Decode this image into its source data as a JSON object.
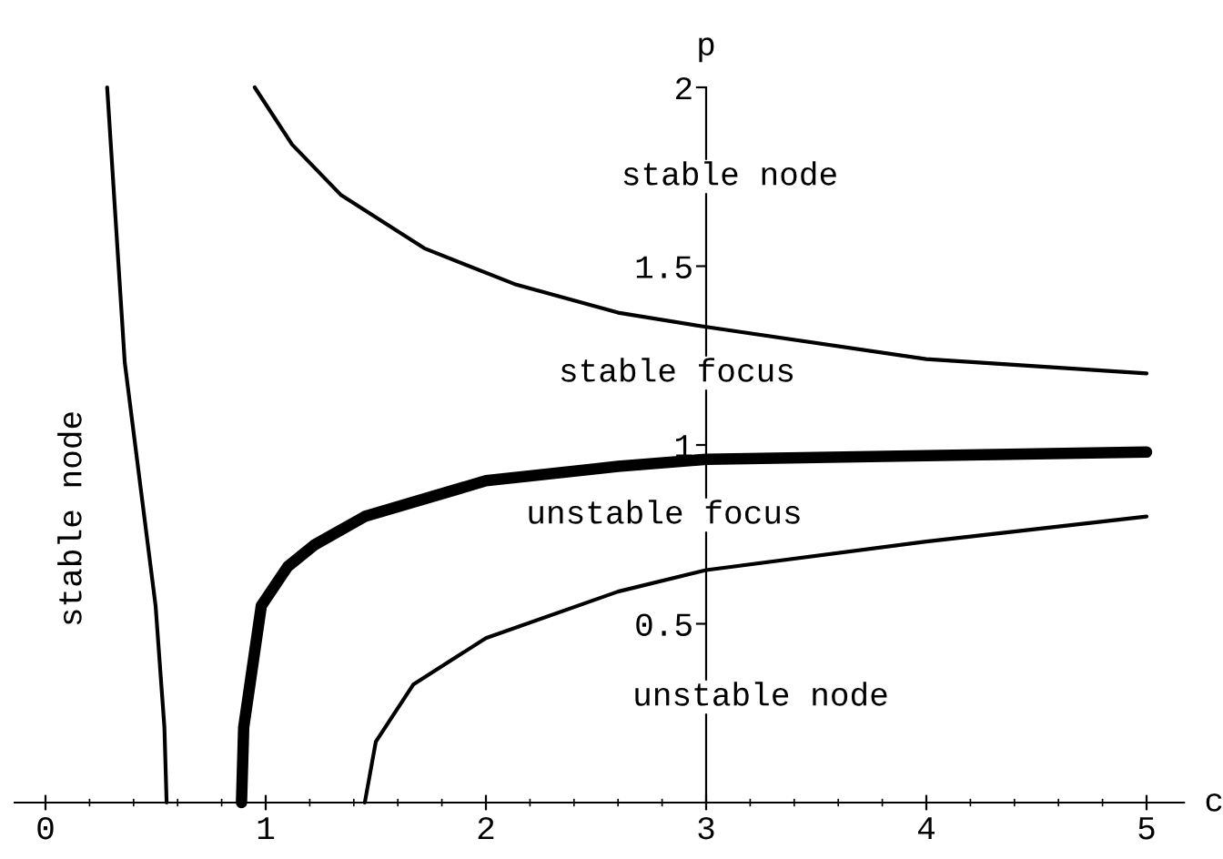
{
  "chart_data": {
    "type": "line",
    "xlabel": "c",
    "ylabel": "p",
    "xlim": [
      -0.14,
      5.17
    ],
    "ylim": [
      0,
      2
    ],
    "xticks": [
      0,
      1,
      2,
      3,
      4,
      5
    ],
    "yticks": [
      0.5,
      1,
      1.5,
      2
    ],
    "grid": false,
    "series": [
      {
        "color": "#000000",
        "x": [
          0.28,
          0.36,
          0.5,
          0.54,
          0.55
        ],
        "values": [
          2.0,
          1.23,
          0.55,
          0.21,
          0
        ]
      },
      {
        "color": "#000000",
        "x": [
          0.89,
          0.9,
          0.98,
          1.1,
          1.22,
          1.45,
          2.0,
          2.6,
          3.0,
          4.0,
          5.0
        ],
        "values": [
          0,
          0.21,
          0.55,
          0.66,
          0.72,
          0.8,
          0.9,
          0.94,
          0.96,
          0.97,
          0.98
        ]
      },
      {
        "color": "#000000",
        "x": [
          0.95,
          1.12,
          1.34,
          1.72,
          2.13,
          2.6,
          3.0,
          4.0,
          5.0
        ],
        "values": [
          2.0,
          1.84,
          1.7,
          1.55,
          1.45,
          1.37,
          1.33,
          1.24,
          1.2
        ]
      },
      {
        "color": "#000000",
        "x": [
          1.45,
          1.5,
          1.67,
          2.0,
          2.6,
          3.0,
          4.0,
          5.0
        ],
        "values": [
          0,
          0.17,
          0.33,
          0.46,
          0.59,
          0.65,
          0.73,
          0.8
        ]
      }
    ],
    "annotations": [
      "stable node",
      "stable focus",
      "unstable focus",
      "unstable node",
      "stable node"
    ]
  }
}
